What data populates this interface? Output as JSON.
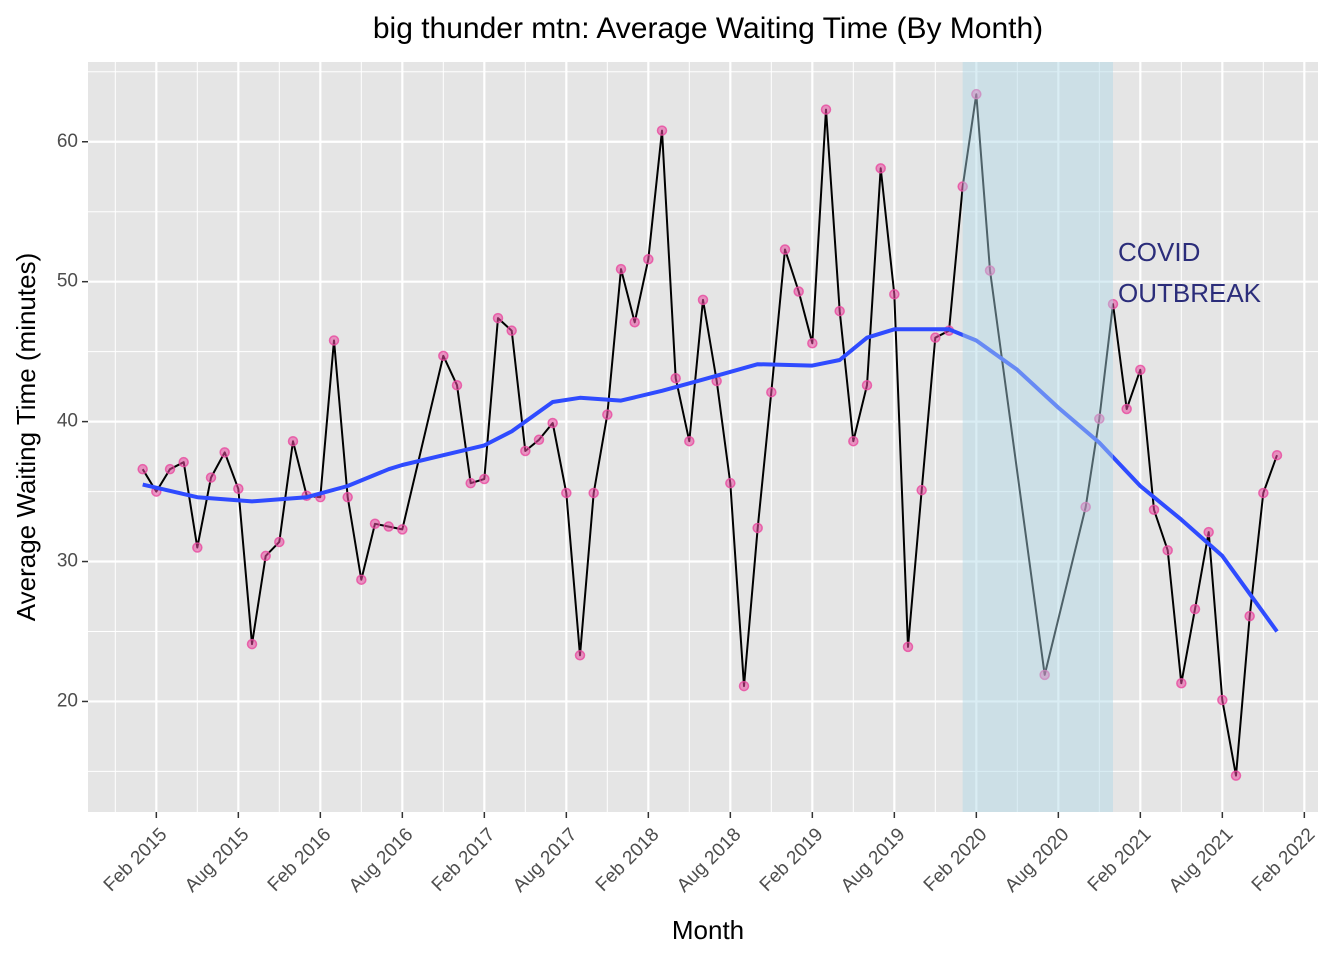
{
  "chart_data": {
    "type": "line",
    "title": "big thunder mtn: Average Waiting Time (By Month)",
    "x_label": "Month",
    "y_label": "Average Waiting Time (minutes)",
    "xlim": [
      "2014-09",
      "2022-03"
    ],
    "ylim": [
      12.1,
      65.7
    ],
    "xticks": [
      {
        "value": "2015-02",
        "label": "Feb 2015"
      },
      {
        "value": "2015-08",
        "label": "Aug 2015"
      },
      {
        "value": "2016-02",
        "label": "Feb 2016"
      },
      {
        "value": "2016-08",
        "label": "Aug 2016"
      },
      {
        "value": "2017-02",
        "label": "Feb 2017"
      },
      {
        "value": "2017-08",
        "label": "Aug 2017"
      },
      {
        "value": "2018-02",
        "label": "Feb 2018"
      },
      {
        "value": "2018-08",
        "label": "Aug 2018"
      },
      {
        "value": "2019-02",
        "label": "Feb 2019"
      },
      {
        "value": "2019-08",
        "label": "Aug 2019"
      },
      {
        "value": "2020-02",
        "label": "Feb 2020"
      },
      {
        "value": "2020-08",
        "label": "Aug 2020"
      },
      {
        "value": "2021-02",
        "label": "Feb 2021"
      },
      {
        "value": "2021-08",
        "label": "Aug 2021"
      },
      {
        "value": "2022-02",
        "label": "Feb 2022"
      }
    ],
    "yticks": [
      20,
      30,
      40,
      50,
      60
    ],
    "grid": true,
    "shade": {
      "xlim": [
        "2020-01",
        "2020-12"
      ],
      "color": "#add8e6",
      "annotation": [
        "COVID",
        "OUTBREAK"
      ]
    },
    "series": [
      {
        "color": "#000000",
        "point_color": "#e8489f",
        "x": [
          "2015-01",
          "2015-02",
          "2015-03",
          "2015-04",
          "2015-05",
          "2015-06",
          "2015-07",
          "2015-08",
          "2015-09",
          "2015-10",
          "2015-11",
          "2015-12",
          "2016-01",
          "2016-02",
          "2016-03",
          "2016-04",
          "2016-05",
          "2016-06",
          "2016-07",
          "2016-08",
          "2016-11",
          "2016-12",
          "2017-01",
          "2017-02",
          "2017-03",
          "2017-04",
          "2017-05",
          "2017-06",
          "2017-07",
          "2017-08",
          "2017-09",
          "2017-10",
          "2017-11",
          "2017-12",
          "2018-01",
          "2018-02",
          "2018-03",
          "2018-04",
          "2018-05",
          "2018-06",
          "2018-07",
          "2018-08",
          "2018-09",
          "2018-10",
          "2018-11",
          "2018-12",
          "2019-01",
          "2019-02",
          "2019-03",
          "2019-04",
          "2019-05",
          "2019-06",
          "2019-07",
          "2019-08",
          "2019-09",
          "2019-10",
          "2019-11",
          "2019-12",
          "2020-01",
          "2020-02",
          "2020-03",
          "2020-07",
          "2020-10",
          "2020-11",
          "2020-12",
          "2021-01",
          "2021-02",
          "2021-03",
          "2021-04",
          "2021-05",
          "2021-06",
          "2021-07",
          "2021-08",
          "2021-09",
          "2021-10",
          "2021-11",
          "2021-12"
        ],
        "values": [
          36.6,
          35.0,
          36.6,
          37.1,
          31.0,
          36.0,
          37.8,
          35.2,
          24.1,
          30.4,
          31.4,
          38.6,
          34.7,
          34.6,
          45.8,
          34.6,
          28.7,
          32.7,
          32.5,
          32.3,
          44.7,
          42.6,
          35.6,
          35.9,
          47.4,
          46.5,
          37.9,
          38.7,
          39.9,
          34.9,
          23.3,
          34.9,
          40.5,
          50.9,
          47.1,
          51.6,
          60.8,
          43.1,
          38.6,
          48.7,
          42.9,
          35.6,
          21.1,
          32.4,
          42.1,
          52.3,
          49.3,
          45.6,
          62.3,
          47.9,
          38.6,
          42.6,
          58.1,
          49.1,
          23.9,
          35.1,
          46.0,
          46.5,
          56.8,
          63.4,
          50.8,
          21.9,
          33.9,
          40.2,
          48.4,
          40.9,
          43.7,
          33.7,
          30.8,
          21.3,
          26.6,
          32.1,
          20.1,
          14.7,
          26.1,
          34.9,
          37.6
        ]
      },
      {
        "color": "#2f4bff",
        "x": [
          "2015-01",
          "2015-05",
          "2015-09",
          "2016-01",
          "2016-04",
          "2016-07",
          "2016-08",
          "2016-11",
          "2017-02",
          "2017-04",
          "2017-07",
          "2017-09",
          "2017-12",
          "2018-03",
          "2018-06",
          "2018-10",
          "2019-02",
          "2019-04",
          "2019-06",
          "2019-08",
          "2019-12",
          "2020-02",
          "2020-05",
          "2020-08",
          "2020-11",
          "2021-02",
          "2021-05",
          "2021-08",
          "2021-12"
        ],
        "values": [
          35.5,
          34.6,
          34.3,
          34.6,
          35.4,
          36.6,
          36.9,
          37.6,
          38.3,
          39.3,
          41.4,
          41.7,
          41.5,
          42.2,
          43.0,
          44.1,
          44.0,
          44.4,
          46.0,
          46.6,
          46.6,
          45.8,
          43.7,
          41.0,
          38.5,
          35.4,
          33.0,
          30.4,
          25.0
        ]
      }
    ]
  }
}
